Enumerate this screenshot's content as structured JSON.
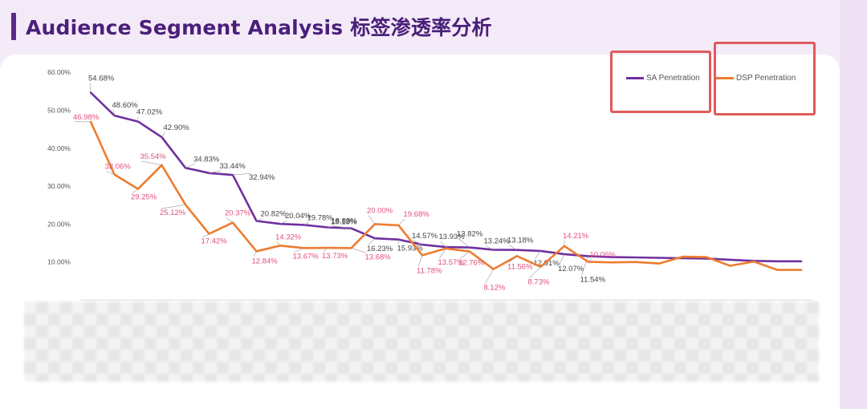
{
  "page": {
    "title": "Audience Segment Analysis 标签渗透率分析"
  },
  "chart_data": {
    "type": "line",
    "title": "",
    "xlabel": "",
    "ylabel": "",
    "ylim": [
      0,
      60
    ],
    "yticks": [
      "10.00%",
      "20.00%",
      "30.00%",
      "40.00%",
      "50.00%",
      "60.00%"
    ],
    "ytick_values": [
      10,
      20,
      30,
      40,
      50,
      60
    ],
    "grid": false,
    "legend_position": "top-right",
    "series": [
      {
        "name": "SA Penetration",
        "color": "#7030a0",
        "label_color": "#444444",
        "values": [
          54.68,
          48.6,
          47.02,
          42.9,
          34.83,
          33.44,
          32.94,
          20.82,
          20.04,
          19.78,
          19.13,
          18.88,
          16.23,
          15.93,
          14.57,
          13.93,
          13.82,
          13.24,
          13.18,
          12.91,
          12.07,
          11.54,
          11.3,
          11.2,
          11.1,
          11.0,
          10.9,
          10.6,
          10.3,
          10.2,
          10.2
        ],
        "labels": [
          "54.68%",
          "48.60%",
          "47.02%",
          "42.90%",
          "34.83%",
          "33.44%",
          "32.94%",
          "20.82%",
          "20.04%",
          "19.78%",
          "19.13%",
          "18.88%",
          "16.23%",
          "15.93%",
          "14.57%",
          "13.93%",
          "13.82%",
          "13.24%",
          "13.18%",
          "12.91%",
          "12.07%",
          "11.54%",
          "",
          "",
          "",
          "",
          "",
          "",
          "",
          "",
          ""
        ]
      },
      {
        "name": "DSP Penetration",
        "color": "#ed7d31",
        "label_color": "#e0507a",
        "values": [
          46.98,
          33.06,
          29.25,
          35.54,
          25.12,
          17.42,
          20.37,
          12.84,
          14.32,
          13.67,
          13.73,
          13.68,
          20.0,
          19.68,
          11.78,
          13.57,
          12.76,
          8.12,
          11.56,
          8.73,
          14.21,
          10.06,
          9.9,
          10.0,
          9.6,
          11.4,
          11.3,
          9.0,
          10.1,
          7.9,
          7.9
        ],
        "labels": [
          "46.98%",
          "33.06%",
          "29.25%",
          "35.54%",
          "25.12%",
          "17.42%",
          "20.37%",
          "12.84%",
          "14.32%",
          "13.67%",
          "13.73%",
          "13.68%",
          "20.00%",
          "19.68%",
          "11.78%",
          "13.57%",
          "12.76%",
          "8.12%",
          "11.56%",
          "8.73%",
          "14.21%",
          "10.06%",
          "",
          "",
          "",
          "",
          "",
          "",
          "",
          "",
          ""
        ]
      }
    ]
  }
}
